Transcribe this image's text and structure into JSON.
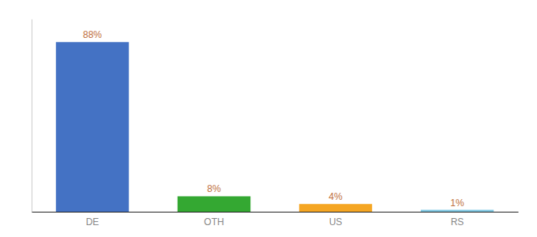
{
  "chart_data": {
    "type": "bar",
    "categories": [
      "DE",
      "OTH",
      "US",
      "RS"
    ],
    "values": [
      88,
      8,
      4,
      1
    ],
    "value_labels": [
      "88%",
      "8%",
      "4%",
      "1%"
    ],
    "colors": [
      "#4472c4",
      "#34a832",
      "#f5a623",
      "#7ec8e3"
    ],
    "ylim": [
      0,
      100
    ],
    "grid": false,
    "data_labels": true,
    "tick_labels": "x"
  }
}
